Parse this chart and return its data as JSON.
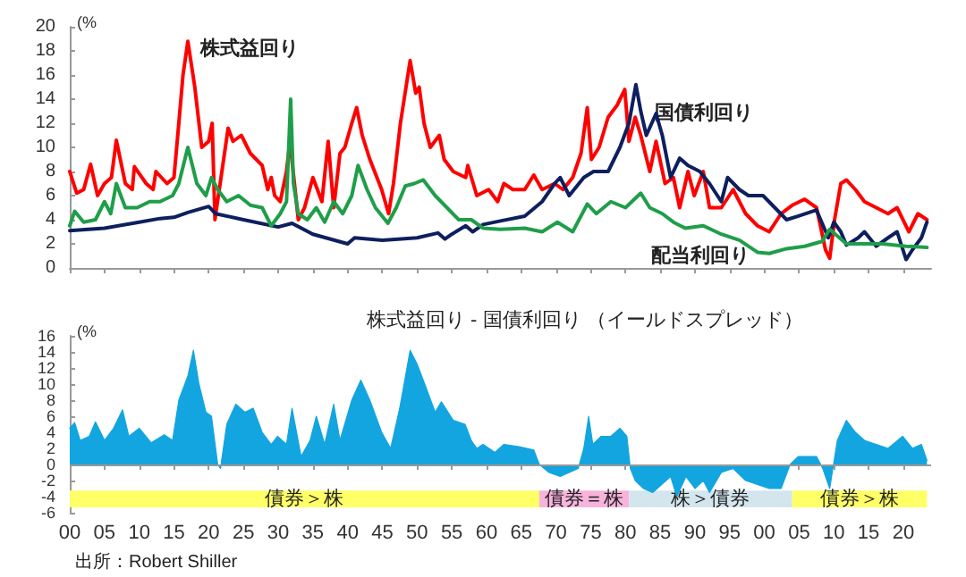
{
  "chart_data": [
    {
      "type": "line",
      "ylabel": "(%",
      "xlim": [
        1900,
        2024
      ],
      "xticks": [
        {
          "value": 1900,
          "label": null
        },
        {
          "value": 1905,
          "label": null
        },
        {
          "value": 1910,
          "label": null
        },
        {
          "value": 1915,
          "label": null
        },
        {
          "value": 1920,
          "label": null
        },
        {
          "value": 1925,
          "label": null
        },
        {
          "value": 1930,
          "label": null
        },
        {
          "value": 1935,
          "label": null
        },
        {
          "value": 1940,
          "label": null
        },
        {
          "value": 1945,
          "label": null
        },
        {
          "value": 1950,
          "label": null
        },
        {
          "value": 1955,
          "label": null
        },
        {
          "value": 1960,
          "label": null
        },
        {
          "value": 1965,
          "label": null
        },
        {
          "value": 1970,
          "label": null
        },
        {
          "value": 1975,
          "label": null
        },
        {
          "value": 1980,
          "label": null
        },
        {
          "value": 1985,
          "label": null
        },
        {
          "value": 1990,
          "label": null
        },
        {
          "value": 1995,
          "label": null
        },
        {
          "value": 2000,
          "label": null
        },
        {
          "value": 2005,
          "label": null
        },
        {
          "value": 2010,
          "label": null
        },
        {
          "value": 2015,
          "label": null
        },
        {
          "value": 2020,
          "label": null
        }
      ],
      "ylim": [
        0,
        20
      ],
      "yticks": [
        0,
        2,
        4,
        6,
        8,
        10,
        12,
        14,
        16,
        18,
        20
      ],
      "tick_labels": "y",
      "grid": false,
      "legend": false,
      "marker": "none",
      "line_style": "solid",
      "series": [
        {
          "name": "株式益回り",
          "color": "#ff0000",
          "x": [
            1900,
            1901,
            1902,
            1903,
            1904,
            1905,
            1906,
            1906.7,
            1908,
            1909,
            1909.3,
            1911,
            1912,
            1912.4,
            1914,
            1915,
            1915.7,
            1916.3,
            1917,
            1918,
            1919,
            1920,
            1920.5,
            1920.9,
            1922.8,
            1923.5,
            1924.7,
            1926,
            1927.7,
            1928.5,
            1929,
            1929.5,
            1930.3,
            1931.2,
            1931.7,
            1932.9,
            1933.8,
            1935,
            1936.3,
            1937.2,
            1938,
            1938.9,
            1939.6,
            1940.6,
            1941.3,
            1942.1,
            1943.2,
            1944.9,
            1945.9,
            1946.6,
            1947.6,
            1949,
            1949.8,
            1950.3,
            1951,
            1951.9,
            1953.2,
            1953.9,
            1955.2,
            1957,
            1957.3,
            1958.6,
            1960.3,
            1961.6,
            1962.5,
            1963.8,
            1965.5,
            1966.8,
            1968,
            1969.8,
            1971,
            1972.4,
            1973.6,
            1974.5,
            1975.1,
            1976.2,
            1977.5,
            1978.8,
            1979.9,
            1980.5,
            1981.4,
            1982.2,
            1983.5,
            1984.4,
            1985.7,
            1986.9,
            1987.8,
            1989,
            1989.9,
            1991.2,
            1992.1,
            1993.8,
            1995.5,
            1997.3,
            1999,
            2000.7,
            2002.4,
            2004,
            2005.8,
            2007.5,
            2008.8,
            2009.4,
            2010.1,
            2011,
            2011.8,
            2013.1,
            2014.4,
            2016.1,
            2017.8,
            2019.1,
            2020.8,
            2022.1,
            2023.4
          ],
          "values": [
            8,
            6.2,
            6.5,
            8.6,
            6,
            7,
            7.5,
            10.6,
            7,
            6.5,
            8.4,
            7,
            6.5,
            8,
            7,
            7.5,
            12,
            16,
            18.8,
            15,
            10,
            10.5,
            12,
            4,
            11.6,
            10.5,
            11,
            9.5,
            8.5,
            6.5,
            7.5,
            6,
            5.5,
            8,
            10.5,
            4,
            5,
            7.5,
            5.5,
            10.5,
            5,
            9.5,
            10,
            12,
            13.3,
            11,
            9,
            6.5,
            4.5,
            7,
            12,
            17.2,
            14.5,
            15,
            12,
            10,
            11,
            9,
            8,
            7.5,
            8.5,
            6,
            6.5,
            5.5,
            7,
            6.5,
            6.5,
            7.7,
            6.5,
            7,
            6.5,
            7.5,
            9.5,
            13.3,
            9,
            10,
            12.5,
            13.5,
            14.8,
            10.5,
            12.5,
            11,
            8,
            10.5,
            7,
            7.5,
            5,
            8,
            6,
            8,
            5,
            5,
            6.5,
            4.5,
            3.5,
            3,
            4.5,
            5.2,
            5.7,
            5,
            1.5,
            0.8,
            4,
            7,
            7.3,
            6.5,
            5.5,
            5,
            4.5,
            5,
            3,
            4.5,
            4
          ]
        },
        {
          "name": "国債利回り",
          "color": "#0d1f5e",
          "x": [
            1900,
            1905,
            1910,
            1913,
            1915,
            1917,
            1920,
            1921,
            1925,
            1930,
            1932,
            1935,
            1940,
            1941,
            1945,
            1950,
            1953,
            1954,
            1955,
            1957,
            1958,
            1959.5,
            1962,
            1965.5,
            1968,
            1969.8,
            1970.6,
            1971.9,
            1974,
            1975.4,
            1977.5,
            1979.2,
            1980.5,
            1981.5,
            1982.2,
            1983,
            1984.4,
            1985.3,
            1986.5,
            1987.8,
            1989,
            1990.7,
            1992.1,
            1993.8,
            1994.7,
            1996.4,
            1997.7,
            1999.8,
            2001.5,
            2003.2,
            2004.9,
            2007.5,
            2009.2,
            2010,
            2011,
            2011.8,
            2013.5,
            2014.4,
            2016.1,
            2017.8,
            2019.1,
            2020.4,
            2021.3,
            2022.6,
            2023.4
          ],
          "values": [
            3.1,
            3.3,
            3.8,
            4.1,
            4.2,
            4.6,
            5.1,
            4.5,
            4,
            3.4,
            3.7,
            2.8,
            2,
            2.5,
            2.3,
            2.5,
            2.9,
            2.4,
            2.8,
            3.5,
            3,
            3.6,
            3.9,
            4.3,
            5.5,
            7,
            7.5,
            6,
            7.5,
            8,
            8,
            10,
            12,
            15.2,
            13,
            11,
            12.8,
            11,
            7.5,
            9.1,
            8.5,
            8,
            7,
            5.5,
            7.5,
            6.5,
            6,
            6,
            5,
            4,
            4.3,
            4.8,
            2.5,
            3.8,
            3,
            1.9,
            2.5,
            3,
            1.8,
            2.5,
            3,
            0.7,
            1.5,
            2.5,
            3.8
          ]
        },
        {
          "name": "配当利回り",
          "color": "#1f9e4a",
          "x": [
            1900,
            1900.7,
            1902,
            1903.7,
            1905,
            1905.9,
            1906.7,
            1908,
            1909.7,
            1911.5,
            1913,
            1914.8,
            1915.7,
            1917,
            1918.3,
            1919.6,
            1920.4,
            1921.3,
            1922.6,
            1924.3,
            1926,
            1927.7,
            1929,
            1930.3,
            1931.2,
            1931.8,
            1932.2,
            1932.9,
            1934.2,
            1935.5,
            1936.7,
            1938,
            1939.3,
            1940.6,
            1941.5,
            1942.8,
            1944,
            1945.8,
            1947,
            1948.3,
            1949.6,
            1950.9,
            1952.6,
            1954.3,
            1956,
            1957.8,
            1959.5,
            1962,
            1965.5,
            1968,
            1970.2,
            1972.4,
            1974.5,
            1975.8,
            1977.9,
            1980,
            1982.2,
            1983.5,
            1985.3,
            1986.9,
            1988.6,
            1991.2,
            1993.8,
            1996.4,
            1999,
            2000.7,
            2003.2,
            2005.8,
            2008.3,
            2009.4,
            2011.8,
            2017,
            2020.4,
            2023.4
          ],
          "values": [
            3.5,
            4.7,
            3.8,
            4,
            5.5,
            4.5,
            7,
            5,
            5,
            5.5,
            5.5,
            6,
            7,
            10,
            7,
            6,
            7.5,
            6.5,
            5.5,
            6,
            5.2,
            5,
            3.5,
            4.5,
            5.5,
            14,
            7,
            4.5,
            4,
            5,
            3.8,
            5.5,
            4.5,
            6,
            8.5,
            6.5,
            5,
            3.7,
            5,
            6.8,
            7,
            7.3,
            6,
            5,
            4,
            4,
            3.3,
            3.2,
            3.3,
            3,
            3.8,
            3,
            5.3,
            4.5,
            5.5,
            5,
            6.2,
            5,
            4.5,
            3.8,
            3.3,
            3.5,
            2.8,
            2.3,
            1.3,
            1.2,
            1.6,
            1.8,
            2.2,
            3.2,
            2,
            2,
            1.8,
            1.7
          ]
        }
      ]
    },
    {
      "type": "area",
      "title": "株式益回り - 国債利回り （イールドスプレッド）",
      "ylabel": "(%",
      "xlim": [
        1900,
        2024
      ],
      "ylim": [
        -6,
        16
      ],
      "yticks": [
        -6,
        -4,
        -2,
        0,
        2,
        4,
        6,
        8,
        10,
        12,
        14,
        16
      ],
      "xticks": [
        {
          "value": 1900,
          "label": "00"
        },
        {
          "value": 1905,
          "label": "05"
        },
        {
          "value": 1910,
          "label": "10"
        },
        {
          "value": 1915,
          "label": "15"
        },
        {
          "value": 1920,
          "label": "20"
        },
        {
          "value": 1925,
          "label": "25"
        },
        {
          "value": 1930,
          "label": "30"
        },
        {
          "value": 1935,
          "label": "35"
        },
        {
          "value": 1940,
          "label": "40"
        },
        {
          "value": 1945,
          "label": "45"
        },
        {
          "value": 1950,
          "label": "50"
        },
        {
          "value": 1955,
          "label": "55"
        },
        {
          "value": 1960,
          "label": "60"
        },
        {
          "value": 1965,
          "label": "65"
        },
        {
          "value": 1970,
          "label": "70"
        },
        {
          "value": 1975,
          "label": "75"
        },
        {
          "value": 1980,
          "label": "80"
        },
        {
          "value": 1985,
          "label": "85"
        },
        {
          "value": 1990,
          "label": "90"
        },
        {
          "value": 1995,
          "label": "95"
        },
        {
          "value": 2000,
          "label": "00"
        },
        {
          "value": 2005,
          "label": "05"
        },
        {
          "value": 2010,
          "label": "10"
        },
        {
          "value": 2015,
          "label": "15"
        },
        {
          "value": 2020,
          "label": "20"
        }
      ],
      "grid": false,
      "legend": false,
      "annotations": [
        "出所：Robert Shiller"
      ],
      "ref_lines": [
        {
          "axis": "y",
          "value": 0,
          "color": "#999999"
        }
      ],
      "bands": [
        {
          "axis": "x",
          "from": 1900,
          "to": 1967.6,
          "label": "債券＞株",
          "color": "#ffff66"
        },
        {
          "axis": "x",
          "from": 1967.6,
          "to": 1980.5,
          "label": "債券＝株",
          "color": "#f7b3dc"
        },
        {
          "axis": "x",
          "from": 1980.5,
          "to": 2004,
          "label": "株＞債券",
          "color": "#d3e6ee"
        },
        {
          "axis": "x",
          "from": 2004,
          "to": 2023.4,
          "label": "債券＞株",
          "color": "#ffff66"
        }
      ],
      "series": [
        {
          "color": "#12a5e0",
          "x": [
            1900,
            1900.7,
            1901.5,
            1902.8,
            1903.7,
            1905,
            1906.3,
            1907.6,
            1908.5,
            1910,
            1911.7,
            1913.6,
            1914.8,
            1915.7,
            1917,
            1917.8,
            1918.6,
            1919.6,
            1920.4,
            1921.3,
            1921.7,
            1922.6,
            1923.9,
            1925.2,
            1926.4,
            1927.7,
            1929,
            1929.9,
            1931.2,
            1932,
            1933.3,
            1934.6,
            1935.5,
            1936.7,
            1938,
            1938.9,
            1940.6,
            1941.9,
            1943.2,
            1944.9,
            1946.2,
            1947.5,
            1949,
            1950,
            1951.1,
            1952.6,
            1953.5,
            1955.2,
            1956.9,
            1957.8,
            1958.6,
            1959.5,
            1961.2,
            1962.5,
            1964.7,
            1966.8,
            1967.6,
            1969,
            1970.6,
            1973.2,
            1974,
            1974.7,
            1975.3,
            1976.5,
            1977.9,
            1979.2,
            1980.2,
            1980.7,
            1981.4,
            1982.6,
            1983.9,
            1985.2,
            1986.5,
            1987.4,
            1988.7,
            1990,
            1991.2,
            1992.1,
            1993.8,
            1995.5,
            1997.3,
            1999,
            2000.7,
            2002.4,
            2003.7,
            2004.9,
            2007.5,
            2008.4,
            2009.4,
            2010.5,
            2011.8,
            2013.1,
            2014.4,
            2016.1,
            2017.8,
            2019.9,
            2021.3,
            2022.6,
            2023.4
          ],
          "values": [
            4.5,
            5.2,
            3,
            3.5,
            5.3,
            3,
            4.5,
            6.8,
            3.5,
            4.5,
            2.7,
            3.7,
            3,
            8,
            11,
            14.2,
            10,
            6.5,
            6,
            0,
            -0.5,
            5,
            7.5,
            6.5,
            7,
            4,
            2.5,
            3.5,
            2.5,
            7,
            1,
            3,
            6,
            2.5,
            7.5,
            3,
            8,
            10.5,
            8,
            4,
            2,
            7,
            14.2,
            12.5,
            10,
            6.5,
            7.8,
            5.5,
            5,
            3,
            2,
            2.5,
            1.5,
            2.5,
            2.2,
            1.8,
            0,
            -1,
            -1.5,
            -0.5,
            2,
            6,
            2.5,
            3.5,
            3.5,
            4.5,
            3.5,
            -0.5,
            -2,
            -3,
            -3.5,
            -2.5,
            -1.5,
            -4,
            -1.5,
            -3,
            -2,
            -3.5,
            -1,
            -0.5,
            -2,
            -2.5,
            -3,
            -3,
            0,
            1,
            1,
            -0.5,
            -3,
            3,
            5.5,
            4,
            3,
            2.5,
            2,
            3.5,
            2,
            2.5,
            0.5
          ]
        }
      ]
    }
  ]
}
